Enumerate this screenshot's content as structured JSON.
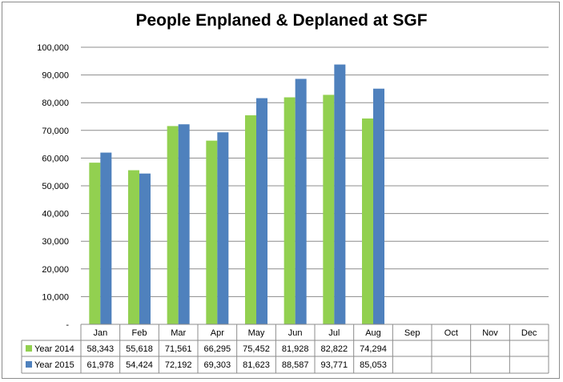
{
  "chart_data": {
    "type": "bar",
    "title": "People Enplaned & Deplaned at SGF",
    "categories": [
      "Jan",
      "Feb",
      "Mar",
      "Apr",
      "May",
      "Jun",
      "Jul",
      "Aug",
      "Sep",
      "Oct",
      "Nov",
      "Dec"
    ],
    "series": [
      {
        "name": "Year 2014",
        "color": "#92d050",
        "values": [
          58343,
          55618,
          71561,
          66295,
          75452,
          81928,
          82822,
          74294,
          null,
          null,
          null,
          null
        ],
        "labels": [
          "58,343",
          "55,618",
          "71,561",
          "66,295",
          "75,452",
          "81,928",
          "82,822",
          "74,294",
          "",
          "",
          "",
          ""
        ]
      },
      {
        "name": "Year 2015",
        "color": "#4f81bd",
        "values": [
          61978,
          54424,
          72192,
          69303,
          81623,
          88587,
          93771,
          85053,
          null,
          null,
          null,
          null
        ],
        "labels": [
          "61,978",
          "54,424",
          "72,192",
          "69,303",
          "81,623",
          "88,587",
          "93,771",
          "85,053",
          "",
          "",
          "",
          ""
        ]
      }
    ],
    "ylim": [
      0,
      100000
    ],
    "yticks": [
      "-",
      "10,000",
      "20,000",
      "30,000",
      "40,000",
      "50,000",
      "60,000",
      "70,000",
      "80,000",
      "90,000",
      "100,000"
    ],
    "grid": true,
    "legend": "data-table"
  }
}
